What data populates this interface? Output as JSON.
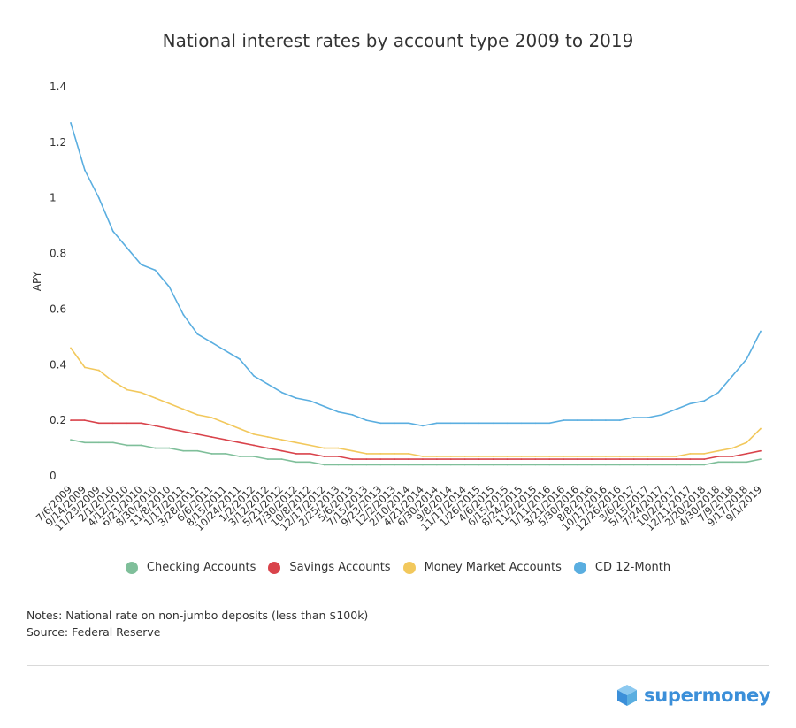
{
  "chart_data": {
    "type": "line",
    "title": "National interest rates by account type 2009 to 2019",
    "ylabel": "APY",
    "xlabel": "",
    "ylim": [
      0,
      1.4
    ],
    "yticks": [
      "0",
      "0.2",
      "0.4",
      "0.6",
      "0.8",
      "1",
      "1.2",
      "1.4"
    ],
    "grid": false,
    "legend_position": "bottom",
    "x": [
      "7/6/2009",
      "9/14/2009",
      "11/23/2009",
      "2/1/2010",
      "4/12/2010",
      "6/21/2010",
      "8/30/2010",
      "11/8/2010",
      "1/17/2011",
      "3/28/2011",
      "6/6/2011",
      "8/15/2011",
      "10/24/2011",
      "1/2/2012",
      "3/12/2012",
      "5/21/2012",
      "7/30/2012",
      "10/8/2012",
      "12/17/2012",
      "2/25/2013",
      "5/6/2013",
      "7/15/2013",
      "9/23/2013",
      "12/2/2013",
      "2/10/2014",
      "4/21/2014",
      "6/30/2014",
      "9/8/2014",
      "11/17/2014",
      "1/26/2015",
      "4/6/2015",
      "6/15/2015",
      "8/24/2015",
      "11/2/2015",
      "1/11/2016",
      "3/21/2016",
      "5/30/2016",
      "8/8/2016",
      "10/17/2016",
      "12/26/2016",
      "3/6/2017",
      "5/15/2017",
      "7/24/2017",
      "10/2/2017",
      "12/11/2017",
      "2/20/2018",
      "4/30/2018",
      "7/9/2018",
      "9/17/2018",
      "9/1/2019"
    ],
    "series": [
      {
        "name": "Checking Accounts",
        "color": "#7fbf9a",
        "values": [
          0.13,
          0.12,
          0.12,
          0.12,
          0.11,
          0.11,
          0.1,
          0.1,
          0.09,
          0.09,
          0.08,
          0.08,
          0.07,
          0.07,
          0.06,
          0.06,
          0.05,
          0.05,
          0.04,
          0.04,
          0.04,
          0.04,
          0.04,
          0.04,
          0.04,
          0.04,
          0.04,
          0.04,
          0.04,
          0.04,
          0.04,
          0.04,
          0.04,
          0.04,
          0.04,
          0.04,
          0.04,
          0.04,
          0.04,
          0.04,
          0.04,
          0.04,
          0.04,
          0.04,
          0.04,
          0.04,
          0.05,
          0.05,
          0.05,
          0.06
        ]
      },
      {
        "name": "Savings Accounts",
        "color": "#d9434b",
        "values": [
          0.2,
          0.2,
          0.19,
          0.19,
          0.19,
          0.19,
          0.18,
          0.17,
          0.16,
          0.15,
          0.14,
          0.13,
          0.12,
          0.11,
          0.1,
          0.09,
          0.08,
          0.08,
          0.07,
          0.07,
          0.06,
          0.06,
          0.06,
          0.06,
          0.06,
          0.06,
          0.06,
          0.06,
          0.06,
          0.06,
          0.06,
          0.06,
          0.06,
          0.06,
          0.06,
          0.06,
          0.06,
          0.06,
          0.06,
          0.06,
          0.06,
          0.06,
          0.06,
          0.06,
          0.06,
          0.06,
          0.07,
          0.07,
          0.08,
          0.09
        ]
      },
      {
        "name": "Money Market Accounts",
        "color": "#f2c85c",
        "values": [
          0.46,
          0.39,
          0.38,
          0.34,
          0.31,
          0.3,
          0.28,
          0.26,
          0.24,
          0.22,
          0.21,
          0.19,
          0.17,
          0.15,
          0.14,
          0.13,
          0.12,
          0.11,
          0.1,
          0.1,
          0.09,
          0.08,
          0.08,
          0.08,
          0.08,
          0.07,
          0.07,
          0.07,
          0.07,
          0.07,
          0.07,
          0.07,
          0.07,
          0.07,
          0.07,
          0.07,
          0.07,
          0.07,
          0.07,
          0.07,
          0.07,
          0.07,
          0.07,
          0.07,
          0.08,
          0.08,
          0.09,
          0.1,
          0.12,
          0.17
        ]
      },
      {
        "name": "CD 12-Month",
        "color": "#5aaee0",
        "values": [
          1.27,
          1.1,
          1.0,
          0.88,
          0.82,
          0.76,
          0.74,
          0.68,
          0.58,
          0.51,
          0.48,
          0.45,
          0.42,
          0.36,
          0.33,
          0.3,
          0.28,
          0.27,
          0.25,
          0.23,
          0.22,
          0.2,
          0.19,
          0.19,
          0.19,
          0.18,
          0.19,
          0.19,
          0.19,
          0.19,
          0.19,
          0.19,
          0.19,
          0.19,
          0.19,
          0.2,
          0.2,
          0.2,
          0.2,
          0.2,
          0.21,
          0.21,
          0.22,
          0.24,
          0.26,
          0.27,
          0.3,
          0.36,
          0.42,
          0.52
        ]
      }
    ]
  },
  "notes": "Notes: National rate on non-jumbo deposits (less than $100k)",
  "source": "Source: Federal Reserve",
  "brand": {
    "name": "supermoney",
    "logo_icon": "cube-logo-icon",
    "color": "#3b8fd9"
  }
}
